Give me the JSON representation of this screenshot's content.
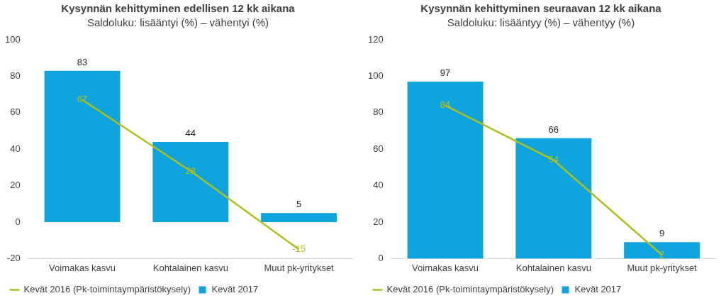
{
  "chart_data": [
    {
      "type": "bar",
      "title": "Kysynnän kehittyminen edellisen 12 kk aikana",
      "subtitle": "Saldoluku: lisääntyi (%) – vähentyi (%)",
      "categories": [
        "Voimakas kasvu",
        "Kohtalainen kasvu",
        "Muut pk-yritykset"
      ],
      "series": [
        {
          "name": "Kevät 2017",
          "type": "bar",
          "color": "#0ea5de",
          "values": [
            83,
            44,
            5
          ]
        },
        {
          "name": "Kevät 2016 (Pk-toimintaympäristökysely)",
          "type": "line",
          "color": "#b0bf1a",
          "values": [
            67,
            28,
            -15
          ]
        }
      ],
      "ylim": [
        -20,
        100
      ],
      "yticks": [
        -20,
        0,
        20,
        40,
        60,
        80,
        100
      ],
      "grid": false,
      "legend": "bottom",
      "data_labels": true
    },
    {
      "type": "bar",
      "title": "Kysynnän kehittyminen seuraavan 12 kk aikana",
      "subtitle": "Saldoluku: lisääntyy (%) – vähentyy (%)",
      "categories": [
        "Voimakas kasvu",
        "Kohtalainen kasvu",
        "Muut pk-yritykset"
      ],
      "series": [
        {
          "name": "Kevät 2017",
          "type": "bar",
          "color": "#0ea5de",
          "values": [
            97,
            66,
            9
          ]
        },
        {
          "name": "Kevät 2016 (Pk-toimintaympäristökysely)",
          "type": "line",
          "color": "#b0bf1a",
          "values": [
            84,
            54,
            2
          ]
        }
      ],
      "ylim": [
        0,
        120
      ],
      "yticks": [
        0,
        20,
        40,
        60,
        80,
        100,
        120
      ],
      "grid": false,
      "legend": "bottom",
      "data_labels": true
    }
  ]
}
